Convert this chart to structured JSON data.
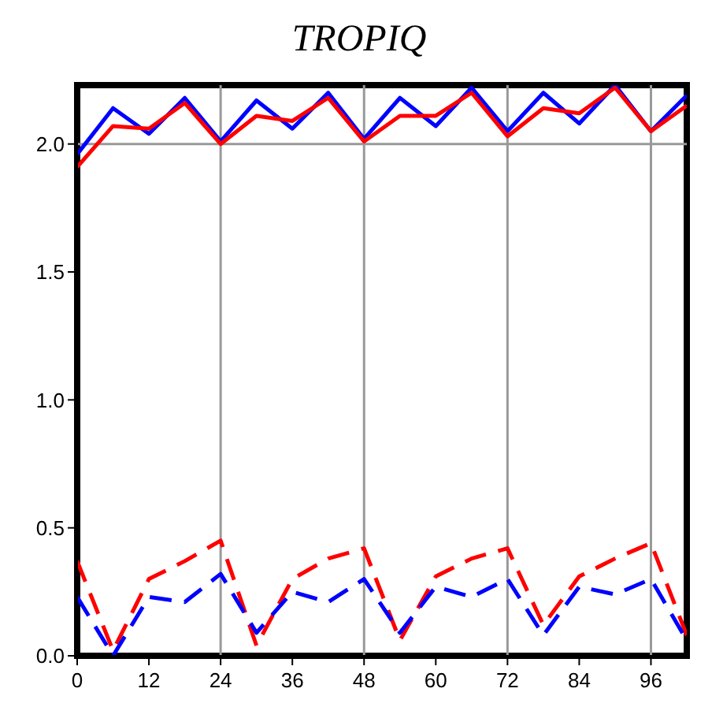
{
  "chart_data": {
    "type": "line",
    "title": "TROPIQ",
    "x": [
      0,
      6,
      12,
      18,
      24,
      30,
      36,
      42,
      48,
      54,
      60,
      66,
      72,
      78,
      84,
      90,
      96,
      102
    ],
    "series": [
      {
        "color": "#0000ff",
        "line_style": "solid",
        "values": [
          1.96,
          2.14,
          2.04,
          2.18,
          2.01,
          2.17,
          2.06,
          2.2,
          2.02,
          2.18,
          2.07,
          2.22,
          2.05,
          2.2,
          2.08,
          2.23,
          2.05,
          2.19
        ]
      },
      {
        "color": "#ff0000",
        "line_style": "solid",
        "values": [
          1.91,
          2.07,
          2.06,
          2.16,
          2.0,
          2.11,
          2.09,
          2.18,
          2.01,
          2.11,
          2.11,
          2.2,
          2.03,
          2.14,
          2.12,
          2.22,
          2.05,
          2.15
        ]
      },
      {
        "color": "#ff0000",
        "line_style": "dashed",
        "values": [
          0.37,
          0.02,
          0.3,
          0.37,
          0.45,
          0.04,
          0.3,
          0.38,
          0.42,
          0.06,
          0.31,
          0.38,
          0.42,
          0.12,
          0.31,
          0.38,
          0.44,
          0.08
        ]
      },
      {
        "color": "#0000ff",
        "line_style": "dashed",
        "values": [
          0.23,
          0.0,
          0.23,
          0.21,
          0.32,
          0.09,
          0.25,
          0.21,
          0.3,
          0.09,
          0.27,
          0.23,
          0.3,
          0.08,
          0.27,
          0.24,
          0.3,
          0.06
        ]
      }
    ],
    "xlim": [
      0,
      102
    ],
    "xticks": [
      0,
      12,
      24,
      36,
      48,
      60,
      72,
      84,
      96
    ],
    "ylim": [
      0,
      2.23
    ],
    "yticks": [
      {
        "value": 0,
        "label": "0.0"
      },
      {
        "value": 0.5,
        "label": "0.5"
      },
      {
        "value": 1,
        "label": "1.0"
      },
      {
        "value": 1.5,
        "label": "1.5"
      },
      {
        "value": 2,
        "label": "2.0"
      }
    ],
    "ref_lines": [
      {
        "axis": "x",
        "value": 24,
        "color": "#999999"
      },
      {
        "axis": "x",
        "value": 48,
        "color": "#999999"
      },
      {
        "axis": "x",
        "value": 72,
        "color": "#999999"
      },
      {
        "axis": "x",
        "value": 96,
        "color": "#999999"
      },
      {
        "axis": "y",
        "value": 2,
        "color": "#999999"
      }
    ],
    "marker": "none"
  }
}
